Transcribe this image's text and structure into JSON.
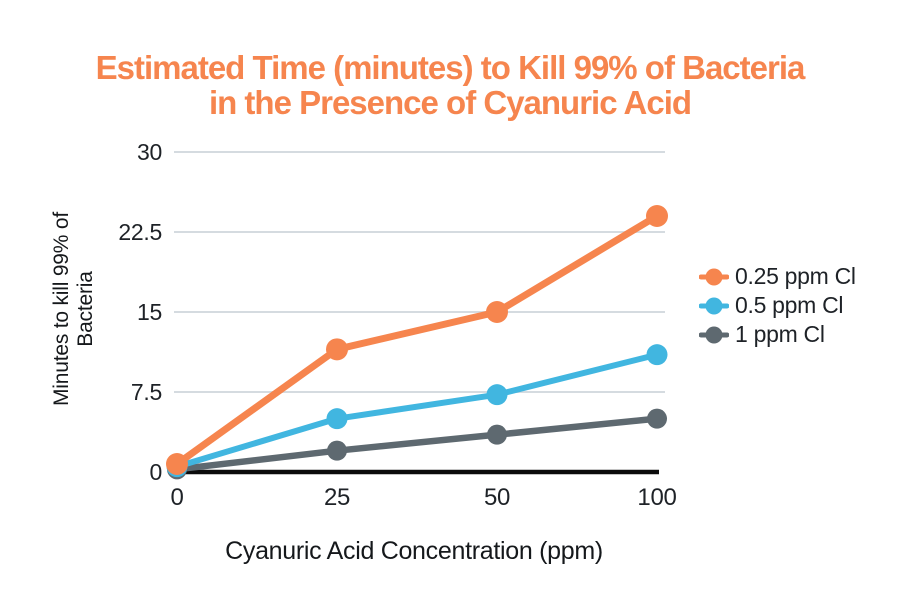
{
  "title": {
    "line1": "Estimated Time (minutes) to Kill 99% of Bacteria",
    "line2": "in the Presence of Cyanuric Acid",
    "color": "#F6854E"
  },
  "chart_data": {
    "type": "line",
    "title": "Estimated Time (minutes) to Kill 99% of Bacteria in the Presence of Cyanuric Acid",
    "xlabel": "Cyanuric Acid Concentration (ppm)",
    "ylabel": "Minutes to kill 99% of Bacteria",
    "ylabel_lines": [
      "Minutes to kill 99% of",
      "Bacteria"
    ],
    "categories": [
      "0",
      "25",
      "50",
      "100"
    ],
    "ylim": [
      0,
      30
    ],
    "yticks": [
      {
        "value": 30,
        "label": "30"
      },
      {
        "value": 22.5,
        "label": "22.5"
      },
      {
        "value": 15,
        "label": "15"
      },
      {
        "value": 7.5,
        "label": "7.5"
      },
      {
        "value": 0,
        "label": "0"
      }
    ],
    "grid": "horizontal",
    "legend_position": "right",
    "series": [
      {
        "name": "0.25 ppm Cl",
        "color": "#F6854E",
        "line_width": 7,
        "marker_radius": 11,
        "values": [
          0.75,
          11.5,
          15,
          24
        ]
      },
      {
        "name": "0.5 ppm Cl",
        "color": "#41B6E0",
        "line_width": 6,
        "marker_radius": 10.5,
        "values": [
          0.5,
          5,
          7.25,
          11
        ]
      },
      {
        "name": "1 ppm Cl",
        "color": "#5E6970",
        "line_width": 6.5,
        "marker_radius": 10,
        "values": [
          0.25,
          2,
          3.5,
          5
        ]
      }
    ]
  },
  "styles": {
    "background": "#FFFFFF",
    "grid_color": "#D5DBE0",
    "axis_line_color": "#0B0B0B",
    "tick_text_color": "#1E2227"
  }
}
